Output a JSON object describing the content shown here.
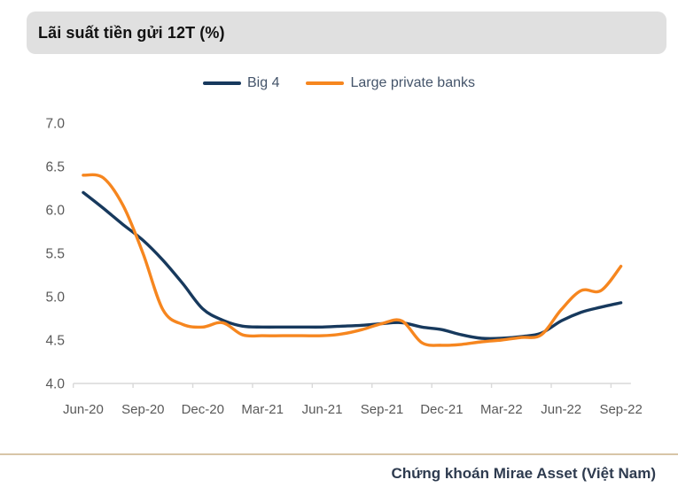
{
  "title": "Lãi suất tiền gửi 12T (%)",
  "footer": {
    "source_label": "Chứng khoán Mirae Asset (Việt Nam)"
  },
  "colors": {
    "big4_line": "#17395d",
    "private_line": "#f6861f",
    "title_bar_bg": "#e0e0e0",
    "axis_line": "#d9d9d9",
    "tick_label_text": "#595959",
    "legend_text": "#44546a",
    "footer_text": "#2e3b4f",
    "footer_divider": "#d8c5a7"
  },
  "chart_data": {
    "type": "line",
    "title": "Lãi suất tiền gửi 12T (%)",
    "smoothed": true,
    "grid": false,
    "legend_position": "top",
    "x": [
      "Jun-20",
      "Jul-20",
      "Aug-20",
      "Sep-20",
      "Oct-20",
      "Nov-20",
      "Dec-20",
      "Jan-21",
      "Feb-21",
      "Mar-21",
      "Apr-21",
      "May-21",
      "Jun-21",
      "Jul-21",
      "Aug-21",
      "Sep-21",
      "Oct-21",
      "Nov-21",
      "Dec-21",
      "Jan-22",
      "Feb-22",
      "Mar-22",
      "Apr-22",
      "May-22",
      "Jun-22",
      "Jul-22",
      "Aug-22",
      "Sep-22"
    ],
    "x_tick_labels": [
      "Jun-20",
      "Sep-20",
      "Dec-20",
      "Mar-21",
      "Jun-21",
      "Sep-21",
      "Dec-21",
      "Mar-22",
      "Jun-22",
      "Sep-22"
    ],
    "x_tick_every": 3,
    "y_ticks": [
      7.0,
      6.5,
      6.0,
      5.5,
      5.0,
      4.5,
      4.0
    ],
    "ylim": [
      4.0,
      7.0
    ],
    "xlabel": "",
    "ylabel": "",
    "series": [
      {
        "name": "Big 4",
        "color": "#17395d",
        "values": [
          6.2,
          6.02,
          5.83,
          5.65,
          5.42,
          5.15,
          4.86,
          4.73,
          4.66,
          4.65,
          4.65,
          4.65,
          4.65,
          4.66,
          4.67,
          4.69,
          4.7,
          4.65,
          4.62,
          4.56,
          4.52,
          4.52,
          4.54,
          4.58,
          4.72,
          4.82,
          4.88,
          4.93
        ]
      },
      {
        "name": "Large private banks",
        "color": "#f6861f",
        "values": [
          6.4,
          6.37,
          6.05,
          5.5,
          4.85,
          4.68,
          4.65,
          4.7,
          4.56,
          4.55,
          4.55,
          4.55,
          4.55,
          4.57,
          4.62,
          4.69,
          4.72,
          4.47,
          4.44,
          4.45,
          4.48,
          4.5,
          4.53,
          4.56,
          4.85,
          5.07,
          5.07,
          5.35
        ]
      }
    ]
  }
}
